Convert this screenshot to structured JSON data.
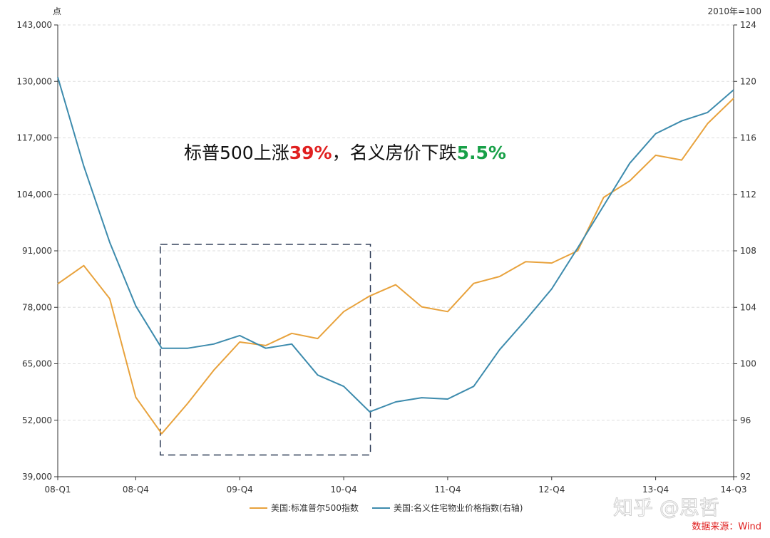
{
  "chart_data": {
    "type": "line",
    "left_axis_unit": "点",
    "right_axis_unit": "2010年=100",
    "x_tick_labels": [
      {
        "label": "08-Q1",
        "index": 0
      },
      {
        "label": "08-Q4",
        "index": 3
      },
      {
        "label": "09-Q4",
        "index": 7
      },
      {
        "label": "10-Q4",
        "index": 11
      },
      {
        "label": "11-Q4",
        "index": 15
      },
      {
        "label": "12-Q4",
        "index": 19
      },
      {
        "label": "13-Q4",
        "index": 23
      },
      {
        "label": "14-Q3",
        "index": 26
      }
    ],
    "num_periods": 27,
    "y_left": {
      "min": 39000,
      "max": 143000,
      "ticks": [
        "39,000",
        "52,000",
        "65,000",
        "78,000",
        "91,000",
        "104,000",
        "117,000",
        "130,000",
        "143,000"
      ]
    },
    "y_right": {
      "min": 92,
      "max": 124,
      "ticks": [
        "92",
        "96",
        "100",
        "104",
        "108",
        "112",
        "116",
        "120",
        "124"
      ]
    },
    "series": [
      {
        "name": "美国:标准普尔500指数",
        "axis": "left",
        "color": "#e8a23c",
        "values": [
          83400,
          87600,
          80000,
          57300,
          48900,
          55900,
          63500,
          70000,
          69200,
          72000,
          70800,
          77000,
          80600,
          83200,
          78100,
          77000,
          83500,
          85100,
          88500,
          88200,
          91000,
          103300,
          107100,
          113000,
          111900,
          120300,
          126100
        ]
      },
      {
        "name": "美国:名义住宅物业价格指数(右轴)",
        "axis": "right",
        "color": "#3d8bad",
        "values": [
          120.3,
          114.0,
          108.6,
          104.1,
          101.1,
          101.1,
          101.4,
          102.0,
          101.1,
          101.4,
          99.2,
          98.4,
          96.6,
          97.3,
          97.6,
          97.5,
          98.4,
          101.0,
          103.1,
          105.3,
          108.2,
          111.2,
          114.2,
          116.3,
          117.2,
          117.8,
          119.4
        ]
      }
    ],
    "annotation": {
      "prefix": "标普500上涨",
      "sp_change": "39%",
      "middle": "，名义房价下跌",
      "house_change": "5.5%"
    },
    "highlight_box": {
      "start_index": 4,
      "end_index": 12,
      "left_value_top": 92500,
      "left_value_bottom": 44000
    },
    "grid": true,
    "legend_position": "bottom-center"
  },
  "watermark": "知乎 @思哲",
  "source": "数据来源：Wind"
}
